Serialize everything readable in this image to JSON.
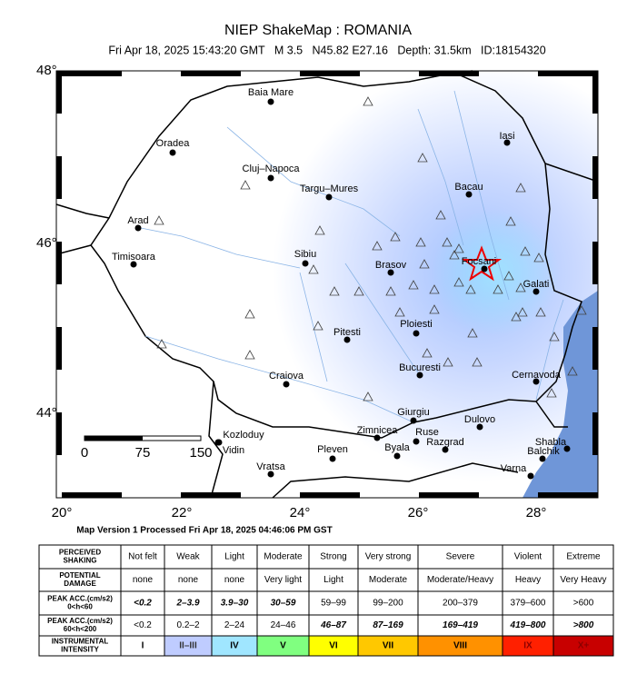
{
  "header": {
    "title": "NIEP ShakeMap : ROMANIA",
    "subtitle": "Fri Apr 18, 2025 15:43:20 GMT   M 3.5   N45.82 E27.16   Depth: 31.5km   ID:18154320"
  },
  "map": {
    "lat_labels": [
      "48°",
      "46°",
      "44°"
    ],
    "lon_labels": [
      "20°",
      "22°",
      "24°",
      "26°",
      "28°"
    ],
    "scale_labels": [
      "0",
      "75",
      "150"
    ],
    "cities": [
      "Baia Mare",
      "Oradea",
      "Cluj–Napoca",
      "Targu–Mures",
      "Iasi",
      "Bacau",
      "Arad",
      "Timisoara",
      "Sibiu",
      "Brasov",
      "Focsani",
      "Galati",
      "Pitesti",
      "Ploiesti",
      "Bucuresti",
      "Cernavoda",
      "Craiova",
      "Giurgiu",
      "Kozloduy",
      "Vidin",
      "Zimnicea",
      "Ruse",
      "Dulovo",
      "Razgrad",
      "Pleven",
      "Byala",
      "Vratsa",
      "Shabla",
      "Balchik",
      "Varna"
    ]
  },
  "footer": "Map Version 1 Processed Fri Apr 18, 2025 04:46:06 PM GST",
  "legend": {
    "rows": [
      {
        "head": [
          "PERCEIVED",
          "SHAKING"
        ],
        "cells": [
          "Not felt",
          "Weak",
          "Light",
          "Moderate",
          "Strong",
          "Very strong",
          "Severe",
          "Violent",
          "Extreme"
        ]
      },
      {
        "head": [
          "POTENTIAL",
          "DAMAGE"
        ],
        "cells": [
          "none",
          "none",
          "none",
          "Very light",
          "Light",
          "Moderate",
          "Moderate/Heavy",
          "Heavy",
          "Very Heavy"
        ]
      },
      {
        "head": [
          "PEAK ACC.(cm/s2)",
          "0<h<60"
        ],
        "cells": [
          "<0.2",
          "2–3.9",
          "3.9–30",
          "30–59",
          "59–99",
          "99–200",
          "200–379",
          "379–600",
          ">600"
        ]
      },
      {
        "head": [
          "PEAK ACC.(cm/s2)",
          "60<h<200"
        ],
        "cells": [
          "<0.2",
          "0.2–2",
          "2–24",
          "24–46",
          "46–87",
          "87–169",
          "169–419",
          "419–800",
          ">800"
        ]
      },
      {
        "head": [
          "INSTRUMENTAL",
          "INTENSITY"
        ],
        "cells": [
          "I",
          "II–III",
          "IV",
          "V",
          "VI",
          "VII",
          "VIII",
          "IX",
          "X+"
        ]
      }
    ]
  }
}
